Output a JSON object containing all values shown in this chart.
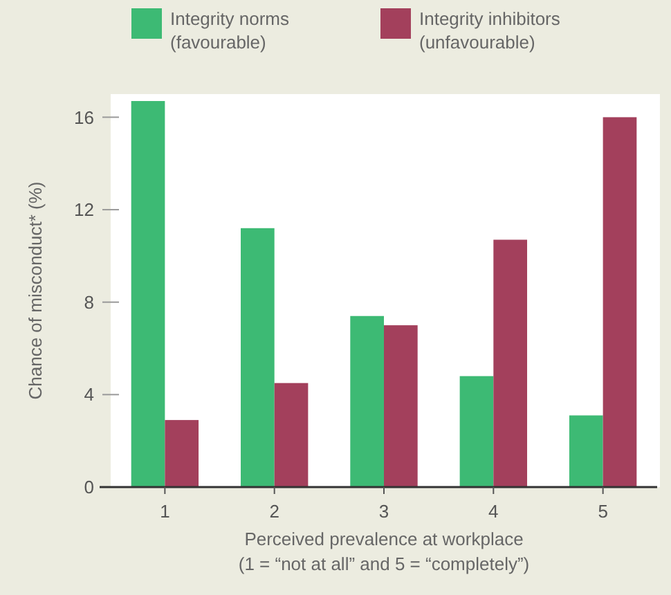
{
  "chart_data": {
    "type": "bar",
    "categories": [
      "1",
      "2",
      "3",
      "4",
      "5"
    ],
    "series": [
      {
        "name": "Integrity norms (favourable)",
        "color": "#3dba74",
        "values": [
          16.7,
          11.2,
          7.4,
          4.8,
          3.1
        ]
      },
      {
        "name": "Integrity inhibitors (unfavourable)",
        "color": "#a3405c",
        "values": [
          2.9,
          4.5,
          7.0,
          10.7,
          16.0
        ]
      }
    ],
    "ylabel": "Chance of misconduct* (%)",
    "xlabel": "Perceived prevalence at workplace\n(1 = “not at all” and 5 = “completely”)",
    "ylim": [
      0,
      17
    ],
    "yticks": [
      0,
      4,
      8,
      12,
      16
    ],
    "legend": "top",
    "grid": false
  }
}
